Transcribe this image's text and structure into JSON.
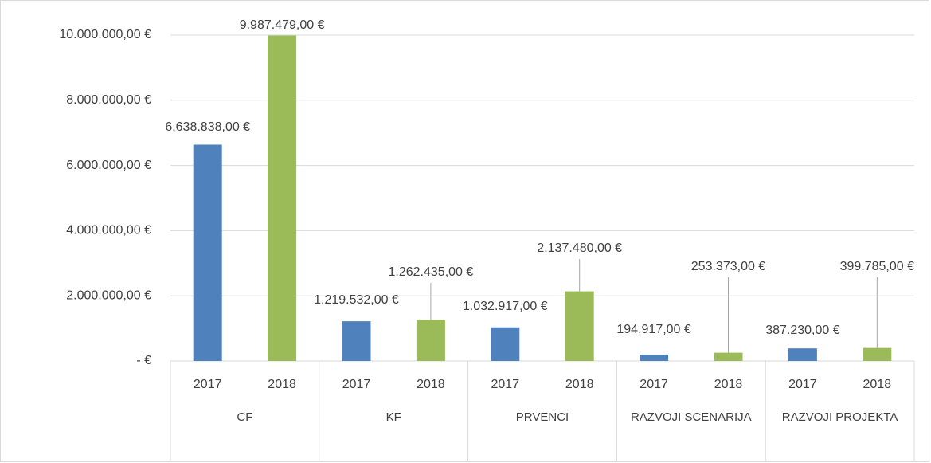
{
  "chart_data": {
    "type": "bar",
    "categories": [
      "CF",
      "KF",
      "PRVENCI",
      "RAZVOJI SCENARIJA",
      "RAZVOJI PROJEKTA"
    ],
    "series": [
      {
        "name": "2017",
        "color": "#4f81bd",
        "values": [
          6638838,
          1219532,
          1032917,
          194917,
          387230
        ],
        "value_labels": [
          "6.638.838,00 €",
          "1.219.532,00 €",
          "1.032.917,00 €",
          "194.917,00 €",
          "387.230,00 €"
        ]
      },
      {
        "name": "2018",
        "color": "#9bbb59",
        "values": [
          9987479,
          1262435,
          2137480,
          253373,
          399785
        ],
        "value_labels": [
          "9.987.479,00 €",
          "1.262.435,00 €",
          "2.137.480,00 €",
          "253.373,00 €",
          "399.785,00 €"
        ]
      }
    ],
    "ylim": [
      0,
      10000000
    ],
    "yticks": [
      {
        "value": 0,
        "label": "-   €"
      },
      {
        "value": 2000000,
        "label": "2.000.000,00 €"
      },
      {
        "value": 4000000,
        "label": "4.000.000,00 €"
      },
      {
        "value": 6000000,
        "label": "6.000.000,00 €"
      },
      {
        "value": 8000000,
        "label": "8.000.000,00 €"
      },
      {
        "value": 10000000,
        "label": "10.000.000,00 €"
      }
    ],
    "grid": true
  }
}
